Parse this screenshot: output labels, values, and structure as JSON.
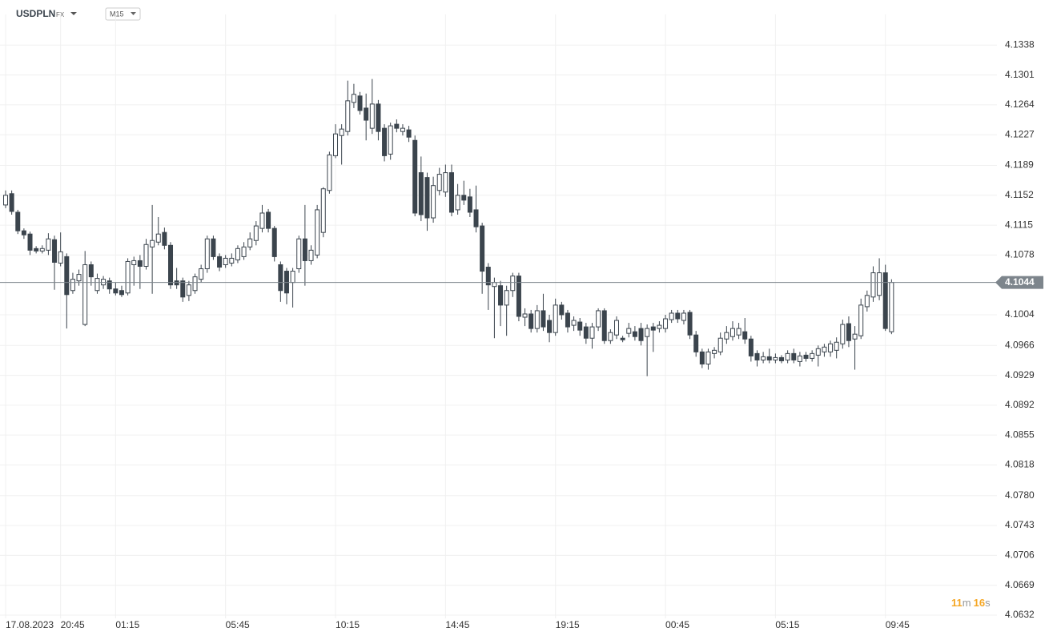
{
  "chart_data": {
    "type": "candlestick",
    "symbol": "USDPLN",
    "market": "FX",
    "interval": "M15",
    "countdown": [
      "11",
      "m",
      "16",
      "s"
    ],
    "current_price": 4.1044,
    "up_color": "#ffffff",
    "down_color": "#3b444d",
    "grid": true,
    "ylim": [
      4.0628,
      4.1376
    ],
    "yticks": [
      4.1338,
      4.1301,
      4.1264,
      4.1227,
      4.1189,
      4.1152,
      4.1115,
      4.1078,
      4.1004,
      4.0966,
      4.0929,
      4.0892,
      4.0855,
      4.0818,
      {
        "value": 4.078,
        "label": "4.0780"
      },
      4.0743,
      4.0706,
      4.0669,
      4.0632
    ],
    "categories": [
      "17.08.2023",
      null,
      null,
      null,
      null,
      null,
      null,
      null,
      null,
      "20:45",
      null,
      null,
      null,
      null,
      null,
      null,
      null,
      null,
      "01:15",
      null,
      null,
      null,
      null,
      null,
      null,
      null,
      null,
      null,
      null,
      null,
      null,
      null,
      null,
      null,
      null,
      null,
      "05:45",
      null,
      null,
      null,
      null,
      null,
      null,
      null,
      null,
      null,
      null,
      null,
      null,
      null,
      null,
      null,
      null,
      null,
      "10:15",
      null,
      null,
      null,
      null,
      null,
      null,
      null,
      null,
      null,
      null,
      null,
      null,
      null,
      null,
      null,
      null,
      null,
      "14:45",
      null,
      null,
      null,
      null,
      null,
      null,
      null,
      null,
      null,
      null,
      null,
      null,
      null,
      null,
      null,
      null,
      null,
      "19:15",
      null,
      null,
      null,
      null,
      null,
      null,
      null,
      null,
      null,
      null,
      null,
      null,
      null,
      null,
      null,
      null,
      null,
      "00:45",
      null,
      null,
      null,
      null,
      null,
      null,
      null,
      null,
      null,
      null,
      null,
      null,
      null,
      null,
      null,
      null,
      null,
      "05:15",
      null,
      null,
      null,
      null,
      null,
      null,
      null,
      null,
      null,
      null,
      null,
      null,
      null,
      null,
      null,
      null,
      null,
      "09:45",
      null
    ],
    "open": [
      4.114,
      4.1154,
      4.1131,
      4.1108,
      4.1104,
      4.1086,
      4.1083,
      4.1084,
      4.1097,
      4.1068,
      4.1076,
      4.1034,
      4.1046,
      4.0992,
      4.1066,
      4.1034,
      4.1041,
      4.1046,
      4.1036,
      4.1034,
      4.1031,
      4.1066,
      4.1071,
      4.1064,
      4.1088,
      4.1094,
      4.1106,
      4.109,
      4.1046,
      4.1046,
      4.1028,
      4.1034,
      4.1048,
      4.1061,
      4.1098,
      4.1076,
      4.1066,
      4.1068,
      4.1072,
      4.1076,
      4.1088,
      4.1096,
      4.1111,
      4.1131,
      4.1111,
      4.1066,
      4.1058,
      4.1044,
      4.1061,
      4.1098,
      4.1071,
      4.1078,
      4.1106,
      4.1158,
      4.1201,
      4.1226,
      4.1231,
      4.1267,
      4.1275,
      4.126,
      4.1235,
      4.1265,
      4.1235,
      4.1203,
      4.124,
      4.1231,
      4.1233,
      4.122,
      4.118,
      4.1174,
      4.1124,
      4.1158,
      4.1156,
      4.118,
      4.1134,
      4.1152,
      4.115,
      4.1134,
      4.1114,
      4.1063,
      4.1039,
      4.104,
      4.1016,
      4.1034,
      4.1052,
      4.1001,
      4.1005,
      4.0987,
      4.1009,
      4.0997,
      4.0982,
      4.1016,
      4.1006,
      4.0991,
      4.0995,
      4.0989,
      4.0975,
      4.0989,
      4.1009,
      4.0972,
      4.0979,
      4.0975,
      4.0981,
      4.0983,
      4.0987,
      4.0977,
      4.0989,
      4.0987,
      4.0987,
      4.0998,
      4.1006,
      4.0997,
      4.1007,
      4.0979,
      4.0958,
      4.0943,
      4.0956,
      4.0958,
      4.0974,
      4.0977,
      4.0979,
      4.0983,
      4.0974,
      4.0956,
      4.0948,
      4.0952,
      4.0948,
      4.0951,
      4.0948,
      4.0956,
      4.0946,
      4.0954,
      4.095,
      4.0954,
      4.0958,
      4.0958,
      4.096,
      4.0968,
      4.0993,
      4.0974,
      4.0978,
      4.1014,
      4.1026,
      4.1028,
      4.1056,
      4.0983
    ],
    "high": [
      4.1158,
      4.1158,
      4.1134,
      4.1111,
      4.1107,
      4.1089,
      4.109,
      4.1105,
      4.1102,
      4.1106,
      4.108,
      4.1056,
      4.106,
      4.1083,
      4.107,
      4.1055,
      4.1052,
      4.105,
      4.1044,
      4.104,
      4.1074,
      4.1076,
      4.1078,
      4.1098,
      4.114,
      4.1125,
      4.1112,
      4.1094,
      4.1062,
      4.105,
      4.1046,
      4.1055,
      4.1066,
      4.1102,
      4.1102,
      4.108,
      4.1078,
      4.108,
      4.109,
      4.1094,
      4.1106,
      4.112,
      4.114,
      4.1135,
      4.1114,
      4.107,
      4.1062,
      4.1062,
      4.1102,
      4.114,
      4.109,
      4.114,
      4.1162,
      4.1206,
      4.124,
      4.124,
      4.1294,
      4.129,
      4.128,
      4.1278,
      4.1296,
      4.127,
      4.124,
      4.1242,
      4.1246,
      4.124,
      4.1238,
      4.1226,
      4.12,
      4.118,
      4.1175,
      4.1186,
      4.119,
      4.119,
      4.1166,
      4.117,
      4.116,
      4.1164,
      4.1118,
      4.1068,
      4.105,
      4.1046,
      4.104,
      4.1056,
      4.1056,
      4.1012,
      4.101,
      4.1016,
      4.103,
      4.1004,
      4.1024,
      4.102,
      4.101,
      4.1002,
      4.1,
      4.0994,
      4.0994,
      4.1012,
      4.1012,
      4.0986,
      4.1002,
      4.0978,
      4.0994,
      4.099,
      4.0994,
      4.0992,
      4.0994,
      4.0996,
      4.1004,
      4.101,
      4.101,
      4.101,
      4.101,
      4.0984,
      4.0962,
      4.0962,
      4.0964,
      4.0982,
      4.099,
      4.0996,
      4.0994,
      4.1,
      4.0978,
      4.096,
      4.0958,
      4.0962,
      4.0956,
      4.0954,
      4.096,
      4.0962,
      4.0958,
      4.0958,
      4.096,
      4.0966,
      4.0968,
      4.0972,
      4.0976,
      4.0998,
      4.1002,
      4.099,
      4.1024,
      4.1034,
      4.1064,
      4.1074,
      4.1066,
      4.1048
    ],
    "low": [
      4.1136,
      4.1128,
      4.1104,
      4.1098,
      4.1078,
      4.108,
      4.108,
      4.1078,
      4.1035,
      4.1064,
      4.0987,
      4.103,
      4.104,
      4.099,
      4.104,
      4.103,
      4.1036,
      4.103,
      4.1028,
      4.1026,
      4.1028,
      4.104,
      4.1036,
      4.106,
      4.103,
      4.109,
      4.1085,
      4.1036,
      4.1036,
      4.102,
      4.1021,
      4.103,
      4.1044,
      4.1056,
      4.1072,
      4.1058,
      4.1062,
      4.1064,
      4.1068,
      4.1072,
      4.1084,
      4.109,
      4.1106,
      4.1106,
      4.107,
      4.102,
      4.1017,
      4.1013,
      4.1056,
      4.104,
      4.1066,
      4.1074,
      4.11,
      4.1154,
      4.1198,
      4.119,
      4.1226,
      4.126,
      4.1252,
      4.122,
      4.1228,
      4.122,
      4.1194,
      4.1196,
      4.123,
      4.1226,
      4.1218,
      4.1126,
      4.112,
      4.1108,
      4.1118,
      4.1152,
      4.115,
      4.1126,
      4.1128,
      4.114,
      4.1125,
      4.1106,
      4.103,
      4.101,
      4.0975,
      4.099,
      4.0978,
      4.1026,
      4.0996,
      4.099,
      4.0982,
      4.0982,
      4.0984,
      4.097,
      4.0978,
      4.0998,
      4.0982,
      4.0984,
      4.0978,
      4.0968,
      4.0962,
      4.0984,
      4.0968,
      4.0968,
      4.0974,
      4.097,
      4.0976,
      4.0972,
      4.0966,
      4.0928,
      4.0958,
      4.0982,
      4.0982,
      4.0994,
      4.0994,
      4.0992,
      4.0974,
      4.0952,
      4.0938,
      4.0936,
      4.095,
      4.0954,
      4.0968,
      4.0972,
      4.0974,
      4.0968,
      4.0946,
      4.094,
      4.0944,
      4.0944,
      4.0944,
      4.0944,
      4.0944,
      4.0944,
      4.094,
      4.0946,
      4.0946,
      4.094,
      4.0952,
      4.0952,
      4.095,
      4.0962,
      4.0964,
      4.0936,
      4.0974,
      4.1008,
      4.102,
      4.1022,
      4.0984,
      4.098
    ],
    "close": [
      4.1152,
      4.1132,
      4.1108,
      4.1103,
      4.1084,
      4.1083,
      4.1086,
      4.1098,
      4.1069,
      4.1082,
      4.1029,
      4.1048,
      4.1054,
      4.1066,
      4.1051,
      4.1049,
      4.1048,
      4.1036,
      4.1031,
      4.1029,
      4.107,
      4.1071,
      4.1064,
      4.1091,
      4.1096,
      4.1104,
      4.109,
      4.1041,
      4.1041,
      4.1026,
      4.1041,
      4.1051,
      4.1061,
      4.1098,
      4.1076,
      4.1063,
      4.1074,
      4.1074,
      4.1086,
      4.1088,
      4.1098,
      4.1114,
      4.113,
      4.1111,
      4.1076,
      4.1034,
      4.1031,
      4.1058,
      4.1098,
      4.1071,
      4.1084,
      4.1134,
      4.116,
      4.1202,
      4.1228,
      4.1234,
      4.1269,
      4.1277,
      4.1257,
      4.1245,
      4.1265,
      4.1231,
      4.1201,
      4.1238,
      4.1235,
      4.1235,
      4.1224,
      4.113,
      4.1128,
      4.1124,
      4.1164,
      4.1178,
      4.118,
      4.1131,
      4.1152,
      4.1146,
      4.1131,
      4.1113,
      4.1058,
      4.1041,
      4.1044,
      4.1016,
      4.1034,
      4.1052,
      4.1002,
      4.1005,
      4.0987,
      4.1009,
      4.0989,
      4.0982,
      4.1016,
      4.1004,
      4.0989,
      4.0997,
      4.0985,
      4.0975,
      4.0989,
      4.1009,
      4.0972,
      4.0982,
      4.0997,
      4.0973,
      4.0987,
      4.0977,
      4.0972,
      4.0987,
      4.0985,
      4.0991,
      4.0999,
      4.1006,
      4.0999,
      4.1006,
      4.0979,
      4.0958,
      4.0943,
      4.0958,
      4.096,
      4.0975,
      4.0982,
      4.0987,
      4.0987,
      4.0974,
      4.0953,
      4.0948,
      4.0952,
      4.0948,
      4.0951,
      4.0947,
      4.0956,
      4.0948,
      4.0953,
      4.095,
      4.0956,
      4.0962,
      4.0964,
      4.0968,
      4.097,
      4.0992,
      4.0972,
      4.098,
      4.1016,
      4.1028,
      4.1056,
      4.1056,
      4.0987,
      4.1044
    ]
  }
}
